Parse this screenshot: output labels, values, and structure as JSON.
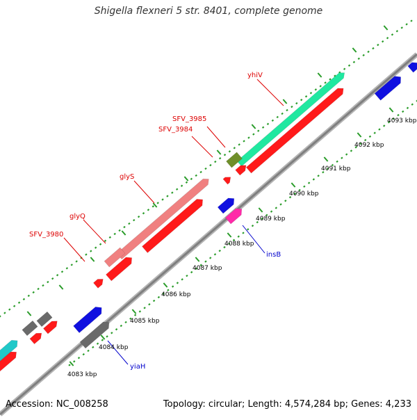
{
  "title": "Shigella flexneri 5 str. 8401, complete genome",
  "footer": {
    "accession": "Accession: NC_008258",
    "summary": "Topology: circular; Length: 4,574,284 bp; Genes: 4,233"
  },
  "colors": {
    "backbone": "#8f8f8f",
    "tick": "#2a9c2a",
    "gene_red": "#ff1a1a",
    "gene_pink": "#f08080",
    "gene_teal": "#20e8a0",
    "gene_olive": "#6f8f2a",
    "gene_magenta": "#ff2aa8",
    "gene_blue": "#1010e0",
    "gene_gray": "#6a6a6a",
    "gene_cyan": "#20c8c8",
    "label_red": "#dd0000",
    "label_blue": "#0000cc"
  },
  "kbp_labels": [
    "4083 kbp",
    "4084 kbp",
    "4085 kbp",
    "4086 kbp",
    "4087 kbp",
    "4088 kbp",
    "4089 kbp",
    "4090 kbp",
    "4091 kbp",
    "4092 kbp",
    "4093 kbp"
  ],
  "gene_labels": {
    "yhiV": "yhiV",
    "SFV_3985": "SFV_3985",
    "SFV_3984": "SFV_3984",
    "glyS": "glyS",
    "glyQ": "glyQ",
    "SFV_3980": "SFV_3980",
    "insB": "insB",
    "yiaH": "yiaH"
  }
}
